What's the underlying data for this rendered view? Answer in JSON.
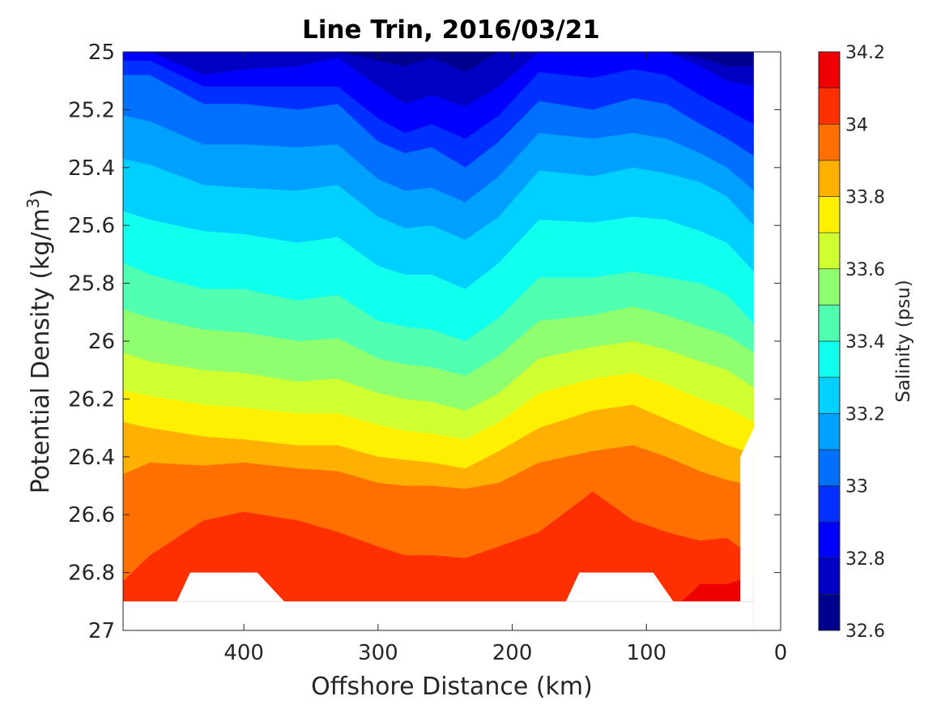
{
  "chart_data": {
    "type": "contour",
    "title": "Line Trin, 2016/03/21",
    "xlabel": "Offshore Distance (km)",
    "ylabel_main": "Potential Density (kg/m",
    "ylabel_sup": "3",
    "ylabel_close": ")",
    "colorbar_label": "Salinity (psu)",
    "x_reversed": true,
    "y_reversed": true,
    "xlim": [
      490,
      0
    ],
    "ylim": [
      25,
      27
    ],
    "x_ticks": [
      400,
      300,
      200,
      100,
      0
    ],
    "x_tick_labels": [
      "400",
      "300",
      "200",
      "100",
      "0"
    ],
    "y_ticks": [
      25,
      25.2,
      25.4,
      25.6,
      25.8,
      26,
      26.2,
      26.4,
      26.6,
      26.8,
      27
    ],
    "y_tick_labels": [
      "25",
      "25.2",
      "25.4",
      "25.6",
      "25.8",
      "26",
      "26.2",
      "26.4",
      "26.6",
      "26.8",
      "27"
    ],
    "colorbar_ticks": [
      34.2,
      34,
      33.8,
      33.6,
      33.4,
      33.2,
      33,
      32.8,
      32.6
    ],
    "colorbar_tick_labels": [
      "34.2",
      "34",
      "33.8",
      "33.6",
      "33.4",
      "33.2",
      "33",
      "32.8",
      "32.6"
    ],
    "levels": [
      32.6,
      32.7,
      32.8,
      32.9,
      33.0,
      33.1,
      33.2,
      33.3,
      33.4,
      33.5,
      33.6,
      33.7,
      33.8,
      33.9,
      34.0,
      34.1,
      34.2
    ],
    "level_colors": [
      "#00008f",
      "#0000c4",
      "#0000ff",
      "#0030ff",
      "#0070ff",
      "#00a0ff",
      "#00d0ff",
      "#10ffef",
      "#50ffaf",
      "#8fff70",
      "#cfff30",
      "#ffef00",
      "#ffb000",
      "#ff7000",
      "#ff3000",
      "#ef0000",
      "#af0000"
    ],
    "contour_lines": [
      {
        "level": 32.7,
        "points": [
          [
            490,
            25.0
          ],
          [
            470,
            25.0
          ],
          [
            430,
            25.0
          ],
          [
            400,
            25.0
          ],
          [
            360,
            25.0
          ],
          [
            330,
            25.0
          ],
          [
            300,
            25.03
          ],
          [
            280,
            25.05
          ],
          [
            260,
            25.02
          ],
          [
            235,
            25.07
          ],
          [
            210,
            25.0
          ],
          [
            180,
            25.0
          ],
          [
            140,
            25.0
          ],
          [
            110,
            25.0
          ],
          [
            85,
            25.0
          ],
          [
            60,
            25.02
          ],
          [
            40,
            25.05
          ],
          [
            20,
            25.05
          ]
        ]
      },
      {
        "level": 32.8,
        "points": [
          [
            490,
            25.0
          ],
          [
            470,
            25.0
          ],
          [
            430,
            25.08
          ],
          [
            400,
            25.06
          ],
          [
            360,
            25.05
          ],
          [
            330,
            25.02
          ],
          [
            300,
            25.12
          ],
          [
            280,
            25.18
          ],
          [
            260,
            25.15
          ],
          [
            235,
            25.19
          ],
          [
            210,
            25.12
          ],
          [
            180,
            25.0
          ],
          [
            140,
            25.0
          ],
          [
            110,
            25.0
          ],
          [
            85,
            25.0
          ],
          [
            60,
            25.05
          ],
          [
            40,
            25.1
          ],
          [
            20,
            25.12
          ]
        ]
      },
      {
        "level": 32.9,
        "points": [
          [
            490,
            25.03
          ],
          [
            470,
            25.03
          ],
          [
            430,
            25.12
          ],
          [
            400,
            25.12
          ],
          [
            360,
            25.12
          ],
          [
            330,
            25.12
          ],
          [
            300,
            25.23
          ],
          [
            280,
            25.28
          ],
          [
            260,
            25.25
          ],
          [
            235,
            25.3
          ],
          [
            210,
            25.22
          ],
          [
            180,
            25.07
          ],
          [
            140,
            25.09
          ],
          [
            110,
            25.06
          ],
          [
            85,
            25.08
          ],
          [
            60,
            25.15
          ],
          [
            40,
            25.2
          ],
          [
            20,
            25.25
          ]
        ]
      },
      {
        "level": 33.0,
        "points": [
          [
            490,
            25.08
          ],
          [
            470,
            25.08
          ],
          [
            430,
            25.18
          ],
          [
            400,
            25.18
          ],
          [
            360,
            25.2
          ],
          [
            330,
            25.18
          ],
          [
            300,
            25.31
          ],
          [
            280,
            25.35
          ],
          [
            260,
            25.33
          ],
          [
            235,
            25.4
          ],
          [
            210,
            25.31
          ],
          [
            180,
            25.17
          ],
          [
            140,
            25.2
          ],
          [
            110,
            25.16
          ],
          [
            85,
            25.18
          ],
          [
            60,
            25.25
          ],
          [
            40,
            25.3
          ],
          [
            20,
            25.36
          ]
        ]
      },
      {
        "level": 33.1,
        "points": [
          [
            490,
            25.22
          ],
          [
            470,
            25.24
          ],
          [
            430,
            25.32
          ],
          [
            400,
            25.32
          ],
          [
            360,
            25.33
          ],
          [
            330,
            25.32
          ],
          [
            300,
            25.44
          ],
          [
            280,
            25.48
          ],
          [
            260,
            25.47
          ],
          [
            235,
            25.52
          ],
          [
            210,
            25.43
          ],
          [
            180,
            25.28
          ],
          [
            140,
            25.3
          ],
          [
            110,
            25.28
          ],
          [
            85,
            25.3
          ],
          [
            60,
            25.35
          ],
          [
            40,
            25.4
          ],
          [
            20,
            25.48
          ]
        ]
      },
      {
        "level": 33.2,
        "points": [
          [
            490,
            25.37
          ],
          [
            470,
            25.39
          ],
          [
            430,
            25.46
          ],
          [
            400,
            25.47
          ],
          [
            360,
            25.48
          ],
          [
            330,
            25.46
          ],
          [
            300,
            25.57
          ],
          [
            280,
            25.61
          ],
          [
            260,
            25.6
          ],
          [
            235,
            25.65
          ],
          [
            210,
            25.57
          ],
          [
            180,
            25.41
          ],
          [
            140,
            25.43
          ],
          [
            110,
            25.4
          ],
          [
            85,
            25.42
          ],
          [
            60,
            25.45
          ],
          [
            40,
            25.5
          ],
          [
            20,
            25.6
          ]
        ]
      },
      {
        "level": 33.3,
        "points": [
          [
            490,
            25.55
          ],
          [
            470,
            25.58
          ],
          [
            430,
            25.62
          ],
          [
            400,
            25.63
          ],
          [
            360,
            25.66
          ],
          [
            330,
            25.64
          ],
          [
            300,
            25.74
          ],
          [
            280,
            25.77
          ],
          [
            260,
            25.77
          ],
          [
            235,
            25.82
          ],
          [
            210,
            25.73
          ],
          [
            180,
            25.58
          ],
          [
            140,
            25.59
          ],
          [
            110,
            25.57
          ],
          [
            85,
            25.58
          ],
          [
            60,
            25.62
          ],
          [
            40,
            25.66
          ],
          [
            20,
            25.76
          ]
        ]
      },
      {
        "level": 33.4,
        "points": [
          [
            490,
            25.73
          ],
          [
            470,
            25.77
          ],
          [
            430,
            25.82
          ],
          [
            400,
            25.82
          ],
          [
            360,
            25.86
          ],
          [
            330,
            25.84
          ],
          [
            300,
            25.93
          ],
          [
            280,
            25.95
          ],
          [
            260,
            25.96
          ],
          [
            235,
            26.0
          ],
          [
            210,
            25.92
          ],
          [
            180,
            25.78
          ],
          [
            140,
            25.78
          ],
          [
            110,
            25.76
          ],
          [
            85,
            25.78
          ],
          [
            60,
            25.8
          ],
          [
            40,
            25.84
          ],
          [
            20,
            25.94
          ]
        ]
      },
      {
        "level": 33.5,
        "points": [
          [
            490,
            25.89
          ],
          [
            470,
            25.92
          ],
          [
            430,
            25.96
          ],
          [
            400,
            25.97
          ],
          [
            360,
            26.0
          ],
          [
            330,
            25.99
          ],
          [
            300,
            26.06
          ],
          [
            280,
            26.08
          ],
          [
            260,
            26.09
          ],
          [
            235,
            26.12
          ],
          [
            210,
            26.05
          ],
          [
            180,
            25.93
          ],
          [
            140,
            25.91
          ],
          [
            110,
            25.88
          ],
          [
            85,
            25.91
          ],
          [
            60,
            25.95
          ],
          [
            40,
            25.98
          ],
          [
            20,
            26.04
          ]
        ]
      },
      {
        "level": 33.6,
        "points": [
          [
            490,
            26.04
          ],
          [
            470,
            26.07
          ],
          [
            430,
            26.1
          ],
          [
            400,
            26.11
          ],
          [
            360,
            26.14
          ],
          [
            330,
            26.13
          ],
          [
            300,
            26.18
          ],
          [
            280,
            26.2
          ],
          [
            260,
            26.21
          ],
          [
            235,
            26.24
          ],
          [
            210,
            26.18
          ],
          [
            180,
            26.06
          ],
          [
            140,
            26.02
          ],
          [
            110,
            26.0
          ],
          [
            85,
            26.03
          ],
          [
            60,
            26.07
          ],
          [
            40,
            26.1
          ],
          [
            20,
            26.16
          ]
        ]
      },
      {
        "level": 33.7,
        "points": [
          [
            490,
            26.17
          ],
          [
            470,
            26.19
          ],
          [
            430,
            26.22
          ],
          [
            400,
            26.23
          ],
          [
            360,
            26.25
          ],
          [
            330,
            26.25
          ],
          [
            300,
            26.29
          ],
          [
            280,
            26.31
          ],
          [
            260,
            26.32
          ],
          [
            235,
            26.34
          ],
          [
            210,
            26.28
          ],
          [
            180,
            26.18
          ],
          [
            140,
            26.13
          ],
          [
            110,
            26.11
          ],
          [
            85,
            26.15
          ],
          [
            60,
            26.2
          ],
          [
            40,
            26.23
          ],
          [
            20,
            26.28
          ]
        ]
      },
      {
        "level": 33.8,
        "points": [
          [
            490,
            26.28
          ],
          [
            470,
            26.3
          ],
          [
            430,
            26.33
          ],
          [
            400,
            26.34
          ],
          [
            360,
            26.36
          ],
          [
            330,
            26.36
          ],
          [
            300,
            26.4
          ],
          [
            280,
            26.41
          ],
          [
            260,
            26.42
          ],
          [
            235,
            26.44
          ],
          [
            210,
            26.38
          ],
          [
            180,
            26.3
          ],
          [
            140,
            26.24
          ],
          [
            110,
            26.22
          ],
          [
            85,
            26.27
          ],
          [
            60,
            26.32
          ],
          [
            40,
            26.36
          ],
          [
            20,
            26.39
          ]
        ]
      },
      {
        "level": 33.9,
        "points": [
          [
            490,
            26.46
          ],
          [
            470,
            26.42
          ],
          [
            430,
            26.43
          ],
          [
            400,
            26.42
          ],
          [
            360,
            26.44
          ],
          [
            330,
            26.45
          ],
          [
            300,
            26.49
          ],
          [
            280,
            26.5
          ],
          [
            260,
            26.5
          ],
          [
            235,
            26.51
          ],
          [
            210,
            26.49
          ],
          [
            180,
            26.42
          ],
          [
            140,
            26.38
          ],
          [
            110,
            26.36
          ],
          [
            85,
            26.4
          ],
          [
            60,
            26.45
          ],
          [
            40,
            26.48
          ],
          [
            20,
            26.5
          ]
        ]
      },
      {
        "level": 34.0,
        "points": [
          [
            490,
            26.83
          ],
          [
            470,
            26.74
          ],
          [
            430,
            26.62
          ],
          [
            400,
            26.59
          ],
          [
            360,
            26.62
          ],
          [
            330,
            26.66
          ],
          [
            300,
            26.71
          ],
          [
            280,
            26.74
          ],
          [
            260,
            26.74
          ],
          [
            235,
            26.75
          ],
          [
            210,
            26.71
          ],
          [
            180,
            26.66
          ],
          [
            140,
            26.52
          ],
          [
            110,
            26.62
          ],
          [
            85,
            26.66
          ],
          [
            60,
            26.69
          ],
          [
            40,
            26.68
          ],
          [
            20,
            26.75
          ]
        ]
      },
      {
        "level": 34.1,
        "points": [
          [
            490,
            26.95
          ],
          [
            470,
            26.95
          ],
          [
            430,
            26.95
          ],
          [
            400,
            26.95
          ],
          [
            360,
            26.95
          ],
          [
            330,
            26.95
          ],
          [
            300,
            26.95
          ],
          [
            280,
            26.95
          ],
          [
            260,
            26.95
          ],
          [
            235,
            26.95
          ],
          [
            210,
            26.95
          ],
          [
            180,
            26.95
          ],
          [
            140,
            26.95
          ],
          [
            110,
            26.95
          ],
          [
            85,
            26.95
          ],
          [
            60,
            26.84
          ],
          [
            40,
            26.84
          ],
          [
            20,
            26.81
          ]
        ]
      }
    ],
    "blank_regions": [
      [
        [
          490,
          26.9
        ],
        [
          20,
          26.9
        ],
        [
          20,
          27.0
        ],
        [
          490,
          27.0
        ]
      ],
      [
        [
          450,
          26.9
        ],
        [
          440,
          26.8
        ],
        [
          390,
          26.8
        ],
        [
          370,
          26.9
        ]
      ],
      [
        [
          160,
          26.9
        ],
        [
          150,
          26.8
        ],
        [
          95,
          26.8
        ],
        [
          80,
          26.9
        ]
      ],
      [
        [
          30,
          26.9
        ],
        [
          30,
          26.4
        ],
        [
          20,
          26.3
        ],
        [
          20,
          26.9
        ]
      ],
      [
        [
          20,
          25.0
        ],
        [
          0,
          25.0
        ],
        [
          0,
          27.0
        ],
        [
          20,
          27.0
        ]
      ]
    ]
  }
}
